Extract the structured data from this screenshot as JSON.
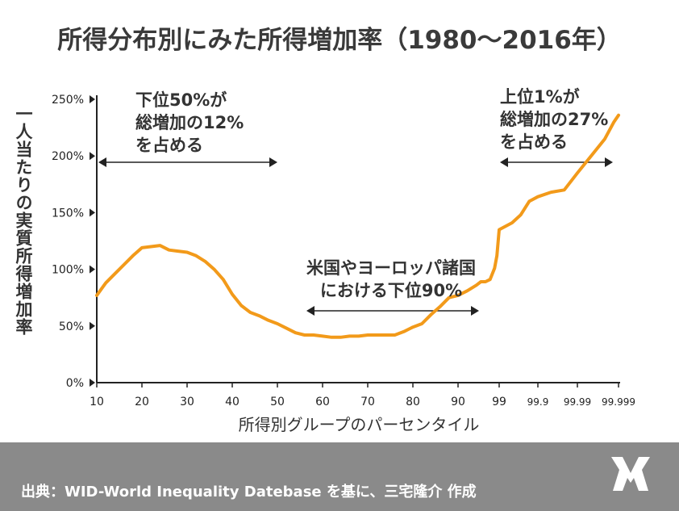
{
  "title": "所得分布別にみた所得増加率（1980～2016年）",
  "footer": {
    "source": "出典：WID-World Inequality Datebase を基に、三宅隆介 作成"
  },
  "colors": {
    "line": "#f29a1a",
    "footer_bg": "#8a8a8a",
    "text": "#333333"
  },
  "annotations": {
    "bottom50": "下位50%が\n総増加の12%\nを占める",
    "top1": "上位1%が\n総増加の27%\nを占める",
    "middle": "米国やヨーロッパ諸国\nにおける下位90%"
  },
  "chart_data": {
    "type": "line",
    "title": "所得分布別にみた所得増加率（1980～2016年）",
    "xlabel": "所得別グループのパーセンタイル",
    "ylabel": "一人当たりの実質所得増加率",
    "yticks": [
      "0%",
      "50%",
      "100%",
      "150%",
      "200%",
      "250%"
    ],
    "ylim": [
      0,
      250
    ],
    "xticks": [
      "10",
      "20",
      "30",
      "40",
      "50",
      "60",
      "70",
      "80",
      "90",
      "99",
      "99.9",
      "99.99",
      "99.999"
    ],
    "grid": false,
    "series": [
      {
        "x": [
          10,
          12,
          14,
          16,
          18,
          20,
          22,
          24,
          26,
          28,
          30,
          32,
          34,
          36,
          38,
          40,
          42,
          44,
          46,
          48,
          50,
          52,
          54,
          56,
          58,
          60,
          62,
          64,
          66,
          68,
          70,
          72,
          74,
          76,
          78,
          80,
          82,
          84,
          86,
          88,
          90,
          92,
          94,
          95,
          96,
          97,
          98,
          98.5,
          99,
          99.3,
          99.5,
          99.7,
          99.9,
          99.93,
          99.96,
          99.99,
          99.993,
          99.996,
          99.998,
          99.999
        ],
        "values": [
          77,
          88,
          96,
          104,
          112,
          119,
          120,
          121,
          117,
          116,
          115,
          112,
          107,
          100,
          91,
          78,
          68,
          62,
          59,
          55,
          52,
          48,
          44,
          42,
          42,
          41,
          40,
          40,
          41,
          41,
          42,
          42,
          42,
          42,
          45,
          49,
          52,
          60,
          67,
          75,
          77,
          81,
          86,
          89,
          89,
          91,
          101,
          112,
          135,
          141,
          148,
          160,
          164,
          168,
          170,
          185,
          200,
          215,
          230,
          236
        ]
      }
    ]
  }
}
